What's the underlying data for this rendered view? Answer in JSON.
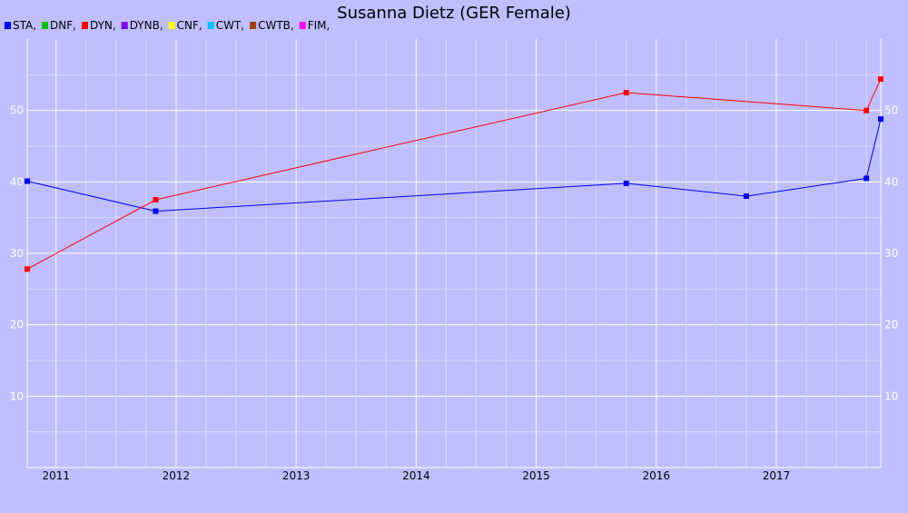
{
  "chart_data": {
    "type": "line",
    "title": "Susanna Dietz (GER Female)",
    "legend": [
      {
        "label": "STA,",
        "color": "#0000ff"
      },
      {
        "label": "DNF,",
        "color": "#00c000"
      },
      {
        "label": "DYN,",
        "color": "#ff0000"
      },
      {
        "label": "DYNB,",
        "color": "#8000ff"
      },
      {
        "label": "CNF,",
        "color": "#ffff00"
      },
      {
        "label": "CWT,",
        "color": "#00c0ff"
      },
      {
        "label": "CWTB,",
        "color": "#a04000"
      },
      {
        "label": "FIM,",
        "color": "#ff00ff"
      }
    ],
    "legend_position": "top-left",
    "x_ticks": [
      "2011",
      "2012",
      "2013",
      "2014",
      "2015",
      "2016",
      "2017"
    ],
    "y_ticks": [
      10,
      20,
      30,
      40,
      50
    ],
    "xlim": [
      2010.76,
      2017.87
    ],
    "ylim": [
      0,
      60
    ],
    "grid": true,
    "series": [
      {
        "name": "STA",
        "color": "#0000ff",
        "x": [
          2010.76,
          2011.83,
          2015.75,
          2016.75,
          2017.75,
          2017.87
        ],
        "y": [
          40.1,
          35.9,
          39.8,
          38.0,
          40.5,
          48.8
        ]
      },
      {
        "name": "DYN",
        "color": "#ff0000",
        "x": [
          2010.76,
          2011.83,
          2015.75,
          2017.75,
          2017.87
        ],
        "y": [
          27.8,
          37.5,
          52.5,
          50.0,
          54.4
        ]
      }
    ]
  }
}
